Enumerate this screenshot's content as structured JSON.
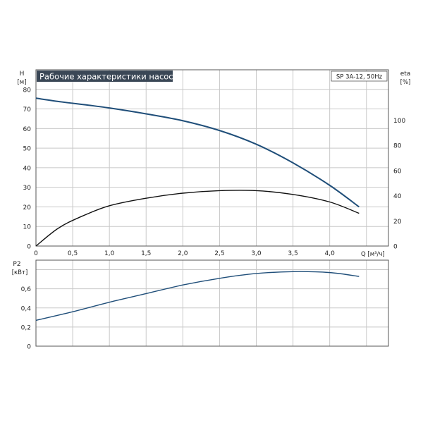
{
  "colors": {
    "head_curve": "#1f4e79",
    "eta_curve": "#111111",
    "p2_curve": "#1f4e79",
    "grid": "#c8c8c8",
    "frame": "#555555",
    "title_bg": "#3a4756",
    "title_fg": "#ffffff"
  },
  "chart_data": [
    {
      "type": "line",
      "title": "Рабочие характеристики насоса",
      "badge": "SP 3A-12, 50Hz",
      "xlabel": "Q [м³/ч]",
      "ylabel_top": "H",
      "ylabel_bottom": "[м]",
      "y2label_top": "eta",
      "y2label_bottom": "[%]",
      "xlim": [
        0,
        4.8
      ],
      "ylim": [
        0,
        90
      ],
      "y2lim": [
        0,
        140
      ],
      "x_ticks": [
        {
          "v": 0,
          "label": "0"
        },
        {
          "v": 0.5,
          "label": "0,5"
        },
        {
          "v": 1.0,
          "label": "1,0"
        },
        {
          "v": 1.5,
          "label": "1,5"
        },
        {
          "v": 2.0,
          "label": "2,0"
        },
        {
          "v": 2.5,
          "label": "2,5"
        },
        {
          "v": 3.0,
          "label": "3,0"
        },
        {
          "v": 3.5,
          "label": "3,5"
        },
        {
          "v": 4.0,
          "label": "4,0"
        }
      ],
      "y_ticks": [
        {
          "v": 0,
          "label": "0"
        },
        {
          "v": 10,
          "label": "10"
        },
        {
          "v": 20,
          "label": "20"
        },
        {
          "v": 30,
          "label": "30"
        },
        {
          "v": 40,
          "label": "40"
        },
        {
          "v": 50,
          "label": "50"
        },
        {
          "v": 60,
          "label": "60"
        },
        {
          "v": 70,
          "label": "70"
        },
        {
          "v": 80,
          "label": "80"
        }
      ],
      "y2_ticks": [
        {
          "v": 0,
          "label": "0"
        },
        {
          "v": 20,
          "label": "20"
        },
        {
          "v": 40,
          "label": "40"
        },
        {
          "v": 60,
          "label": "60"
        },
        {
          "v": 80,
          "label": "80"
        },
        {
          "v": 100,
          "label": "100"
        }
      ],
      "grid": true,
      "series": [
        {
          "axis": "left",
          "x": [
            0,
            0.35,
            0.7,
            1.0,
            1.5,
            2.0,
            2.5,
            3.0,
            3.5,
            4.0,
            4.4
          ],
          "values": [
            75.5,
            73.6,
            72.0,
            70.5,
            67.5,
            64.0,
            59.0,
            52.0,
            42.5,
            31.0,
            20.0
          ]
        },
        {
          "axis": "right",
          "x": [
            0,
            0.3,
            0.6,
            1.0,
            1.5,
            2.0,
            2.5,
            3.0,
            3.5,
            4.0,
            4.4
          ],
          "values": [
            0,
            14,
            23,
            32,
            38,
            42,
            44,
            44,
            41,
            35,
            26
          ]
        }
      ]
    },
    {
      "type": "line",
      "ylabel_top": "P2",
      "ylabel_bottom": "[кВт]",
      "xlim": [
        0,
        4.8
      ],
      "ylim": [
        0,
        0.9
      ],
      "y_ticks": [
        {
          "v": 0,
          "label": "0"
        },
        {
          "v": 0.2,
          "label": "0,2"
        },
        {
          "v": 0.4,
          "label": "0,4"
        },
        {
          "v": 0.6,
          "label": "0,6"
        }
      ],
      "grid": true,
      "series": [
        {
          "axis": "left",
          "x": [
            0,
            0.5,
            1.0,
            1.5,
            2.0,
            2.5,
            3.0,
            3.5,
            4.0,
            4.4
          ],
          "values": [
            0.27,
            0.36,
            0.46,
            0.55,
            0.64,
            0.71,
            0.76,
            0.78,
            0.77,
            0.73
          ]
        }
      ]
    }
  ]
}
